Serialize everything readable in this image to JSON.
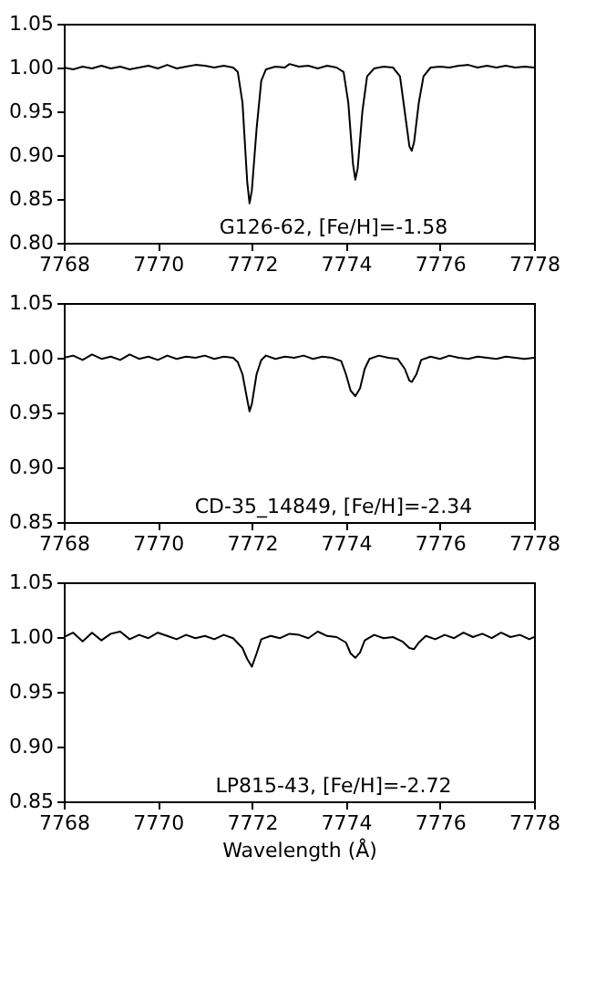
{
  "chart_data": [
    {
      "type": "line",
      "x": [
        7768,
        7768.2,
        7768.4,
        7768.6,
        7768.8,
        7769,
        7769.2,
        7769.4,
        7769.6,
        7769.8,
        7770,
        7770.2,
        7770.4,
        7770.6,
        7770.8,
        7771,
        7771.2,
        7771.4,
        7771.6,
        7771.7,
        7771.8,
        7771.9,
        7771.95,
        7772,
        7772.1,
        7772.2,
        7772.3,
        7772.5,
        7772.7,
        7772.8,
        7773,
        7773.2,
        7773.4,
        7773.6,
        7773.8,
        7773.95,
        7774.05,
        7774.15,
        7774.2,
        7774.25,
        7774.35,
        7774.45,
        7774.6,
        7774.8,
        7775,
        7775.15,
        7775.25,
        7775.35,
        7775.4,
        7775.45,
        7775.55,
        7775.65,
        7775.8,
        7776,
        7776.2,
        7776.4,
        7776.6,
        7776.8,
        7777,
        7777.2,
        7777.4,
        7777.6,
        7777.8,
        7778
      ],
      "series": [
        {
          "color": "#000000",
          "values": [
            1.0,
            0.998,
            1.001,
            0.999,
            1.002,
            0.999,
            1.001,
            0.998,
            1.0,
            1.002,
            0.999,
            1.003,
            0.999,
            1.001,
            1.003,
            1.002,
            1.0,
            1.002,
            1.0,
            0.995,
            0.96,
            0.87,
            0.845,
            0.86,
            0.93,
            0.985,
            0.998,
            1.001,
            1.0,
            1.004,
            1.001,
            1.002,
            0.999,
            1.002,
            1.0,
            0.995,
            0.96,
            0.89,
            0.872,
            0.885,
            0.95,
            0.99,
            0.999,
            1.001,
            1.0,
            0.99,
            0.95,
            0.91,
            0.905,
            0.915,
            0.96,
            0.99,
            1.0,
            1.001,
            1.0,
            1.002,
            1.003,
            1.0,
            1.002,
            1.0,
            1.002,
            1.0,
            1.001,
            1.0
          ]
        }
      ],
      "xlim": [
        7768,
        7778
      ],
      "xticks": [
        7768,
        7770,
        7772,
        7774,
        7776,
        7778
      ],
      "ylim": [
        0.8,
        1.05
      ],
      "yticks": [
        {
          "value": 0.8,
          "label": "0.80"
        },
        0.85,
        {
          "value": 0.9,
          "label": "0.90"
        },
        0.95,
        {
          "value": 1.0,
          "label": "1.00"
        },
        1.05
      ],
      "annotations": [
        "G126-62, [Fe/H]=-1.58"
      ]
    },
    {
      "type": "line",
      "x": [
        7768,
        7768.2,
        7768.4,
        7768.6,
        7768.8,
        7769,
        7769.2,
        7769.4,
        7769.6,
        7769.8,
        7770,
        7770.2,
        7770.4,
        7770.6,
        7770.8,
        7771,
        7771.2,
        7771.4,
        7771.6,
        7771.7,
        7771.8,
        7771.9,
        7771.95,
        7772,
        7772.1,
        7772.2,
        7772.3,
        7772.5,
        7772.7,
        7772.9,
        7773.1,
        7773.3,
        7773.5,
        7773.7,
        7773.9,
        7774.0,
        7774.1,
        7774.2,
        7774.3,
        7774.4,
        7774.5,
        7774.7,
        7774.9,
        7775.1,
        7775.25,
        7775.35,
        7775.4,
        7775.5,
        7775.6,
        7775.8,
        7776,
        7776.2,
        7776.4,
        7776.6,
        7776.8,
        7777,
        7777.2,
        7777.4,
        7777.6,
        7777.8,
        7778
      ],
      "series": [
        {
          "color": "#000000",
          "values": [
            1.0,
            1.002,
            0.998,
            1.003,
            0.999,
            1.001,
            0.998,
            1.003,
            0.999,
            1.001,
            0.998,
            1.002,
            0.999,
            1.001,
            1.0,
            1.002,
            0.999,
            1.001,
            1.0,
            0.996,
            0.985,
            0.962,
            0.951,
            0.958,
            0.985,
            0.998,
            1.002,
            0.999,
            1.001,
            1.0,
            1.002,
            0.999,
            1.001,
            1.0,
            0.997,
            0.985,
            0.97,
            0.965,
            0.972,
            0.99,
            0.999,
            1.002,
            1.0,
            0.999,
            0.99,
            0.979,
            0.978,
            0.985,
            0.998,
            1.001,
            0.999,
            1.002,
            1.0,
            0.999,
            1.001,
            1.0,
            0.999,
            1.001,
            1.0,
            0.999,
            1.0
          ]
        }
      ],
      "xlim": [
        7768,
        7778
      ],
      "xticks": [
        7768,
        7770,
        7772,
        7774,
        7776,
        7778
      ],
      "ylim": [
        0.85,
        1.05
      ],
      "yticks": [
        0.85,
        {
          "value": 0.9,
          "label": "0.90"
        },
        0.95,
        {
          "value": 1.0,
          "label": "1.00"
        },
        1.05
      ],
      "annotations": [
        "CD-35_14849, [Fe/H]=-2.34"
      ]
    },
    {
      "type": "line",
      "x": [
        7768,
        7768.2,
        7768.4,
        7768.6,
        7768.8,
        7769,
        7769.2,
        7769.4,
        7769.6,
        7769.8,
        7770,
        7770.2,
        7770.4,
        7770.6,
        7770.8,
        7771,
        7771.2,
        7771.4,
        7771.6,
        7771.8,
        7771.9,
        7772,
        7772.1,
        7772.2,
        7772.4,
        7772.6,
        7772.8,
        7773,
        7773.2,
        7773.4,
        7773.6,
        7773.8,
        7774,
        7774.1,
        7774.2,
        7774.3,
        7774.4,
        7774.6,
        7774.8,
        7775,
        7775.2,
        7775.35,
        7775.45,
        7775.55,
        7775.7,
        7775.9,
        7776.1,
        7776.3,
        7776.5,
        7776.7,
        7776.9,
        7777.1,
        7777.3,
        7777.5,
        7777.7,
        7777.9,
        7778
      ],
      "series": [
        {
          "color": "#000000",
          "values": [
            1.0,
            1.004,
            0.996,
            1.004,
            0.997,
            1.003,
            1.005,
            0.998,
            1.002,
            0.999,
            1.004,
            1.001,
            0.998,
            1.002,
            0.999,
            1.001,
            0.998,
            1.002,
            0.999,
            0.99,
            0.98,
            0.973,
            0.985,
            0.998,
            1.001,
            0.999,
            1.003,
            1.002,
            0.999,
            1.005,
            1.001,
            1.0,
            0.995,
            0.985,
            0.981,
            0.986,
            0.997,
            1.002,
            0.999,
            1.0,
            0.996,
            0.99,
            0.989,
            0.995,
            1.001,
            0.998,
            1.002,
            0.999,
            1.004,
            1.0,
            1.003,
            0.999,
            1.004,
            1.0,
            1.002,
            0.998,
            1.0
          ]
        }
      ],
      "xlim": [
        7768,
        7778
      ],
      "xticks": [
        7768,
        7770,
        7772,
        7774,
        7776,
        7778
      ],
      "ylim": [
        0.85,
        1.05
      ],
      "yticks": [
        0.85,
        {
          "value": 0.9,
          "label": "0.90"
        },
        0.95,
        {
          "value": 1.0,
          "label": "1.00"
        },
        1.05
      ],
      "xlabel": "Wavelength (Å)",
      "annotations": [
        "LP815-43, [Fe/H]=-2.72"
      ]
    }
  ]
}
